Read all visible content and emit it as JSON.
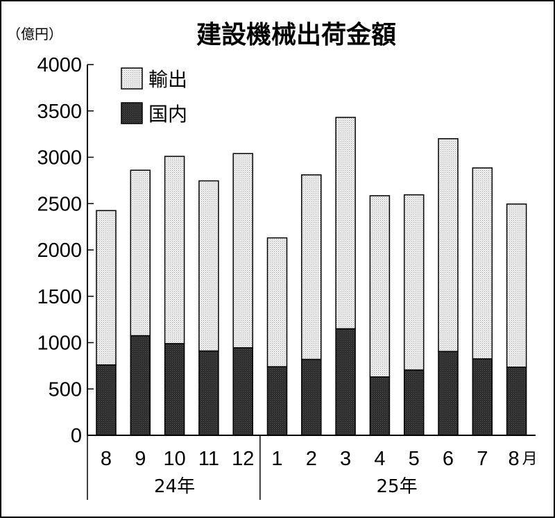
{
  "chart_data": {
    "type": "bar",
    "stacked": true,
    "title": "建設機械出荷金額",
    "unit_label": "（億円）",
    "categories": [
      "8",
      "9",
      "10",
      "11",
      "12",
      "1",
      "2",
      "3",
      "4",
      "5",
      "6",
      "7",
      "8"
    ],
    "month_suffix": "月",
    "year_groups": [
      {
        "label": "24年",
        "count": 5
      },
      {
        "label": "25年",
        "count": 8
      }
    ],
    "series": [
      {
        "name": "国内",
        "color": "#333333",
        "values": [
          760,
          1075,
          990,
          910,
          945,
          740,
          820,
          1150,
          630,
          705,
          905,
          825,
          735
        ]
      },
      {
        "name": "輸出",
        "color": "#e6e6e6",
        "values": [
          1665,
          1785,
          2020,
          1835,
          2095,
          1390,
          1990,
          2280,
          1955,
          1890,
          2295,
          2060,
          1760
        ]
      }
    ],
    "ylim": [
      0,
      4000
    ],
    "yticks": [
      0,
      500,
      1000,
      1500,
      2000,
      2500,
      3000,
      3500,
      4000
    ],
    "legend_position": "top-left",
    "grid": false
  }
}
